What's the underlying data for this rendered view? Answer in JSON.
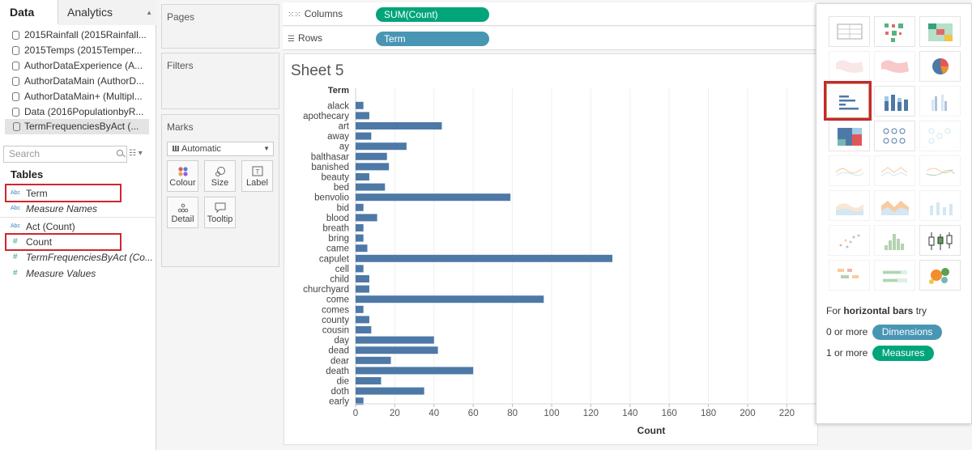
{
  "data_pane": {
    "tabs": [
      {
        "label": "Data"
      },
      {
        "label": "Analytics"
      }
    ],
    "data_sources": [
      {
        "label": "2015Rainfall (2015Rainfall..."
      },
      {
        "label": "2015Temps (2015Temper..."
      },
      {
        "label": "AuthorDataExperience (A..."
      },
      {
        "label": "AuthorDataMain (AuthorD..."
      },
      {
        "label": "AuthorDataMain+ (Multipl..."
      },
      {
        "label": "Data (2016PopulationbyR..."
      },
      {
        "label": "TermFrequenciesByAct (..."
      }
    ],
    "search_placeholder": "Search",
    "tables_header": "Tables",
    "fields": [
      {
        "type": "Abc",
        "label": "Term"
      },
      {
        "type": "Abc",
        "label": "Measure Names"
      },
      {
        "type": "Abc",
        "label": "Act (Count)"
      },
      {
        "type": "#",
        "label": "Count"
      },
      {
        "type": "#",
        "label": "TermFrequenciesByAct (Co..."
      },
      {
        "type": "#",
        "label": "Measure Values"
      }
    ]
  },
  "cards": {
    "pages": "Pages",
    "filters": "Filters",
    "marks": "Marks",
    "mark_type": "Automatic",
    "mark_buttons": [
      {
        "label": "Colour"
      },
      {
        "label": "Size"
      },
      {
        "label": "Label"
      },
      {
        "label": "Detail"
      },
      {
        "label": "Tooltip"
      }
    ]
  },
  "shelves": {
    "columns_label": "Columns",
    "columns_pill": "SUM(Count)",
    "rows_label": "Rows",
    "rows_pill": "Term"
  },
  "sheet": {
    "title": "Sheet 5"
  },
  "show_me": {
    "hint_prefix": "For ",
    "hint_bold": "horizontal bars",
    "hint_suffix": " try",
    "req1_text": "0 or more",
    "req1_pill": "Dimensions",
    "req2_text": "1 or more",
    "req2_pill": "Measures",
    "colors": {
      "dimension": "#4896b4",
      "measure": "#00a579"
    }
  },
  "chart_data": {
    "type": "bar",
    "orientation": "horizontal",
    "row_header": "Term",
    "xlabel": "Count",
    "xlim": [
      0,
      230
    ],
    "x_ticks": [
      0,
      20,
      40,
      60,
      80,
      100,
      120,
      140,
      160,
      180,
      200,
      220
    ],
    "bar_color": "#4e79a7",
    "categories": [
      "alack",
      "apothecary",
      "art",
      "away",
      "ay",
      "balthasar",
      "banished",
      "beauty",
      "bed",
      "benvolio",
      "bid",
      "blood",
      "breath",
      "bring",
      "came",
      "capulet",
      "cell",
      "child",
      "churchyard",
      "come",
      "comes",
      "county",
      "cousin",
      "day",
      "dead",
      "dear",
      "death",
      "die",
      "doth",
      "early"
    ],
    "values": [
      4,
      7,
      44,
      8,
      26,
      16,
      17,
      7,
      15,
      79,
      4,
      11,
      4,
      4,
      6,
      131,
      4,
      7,
      7,
      96,
      4,
      7,
      8,
      40,
      42,
      18,
      60,
      13,
      35,
      4
    ]
  }
}
